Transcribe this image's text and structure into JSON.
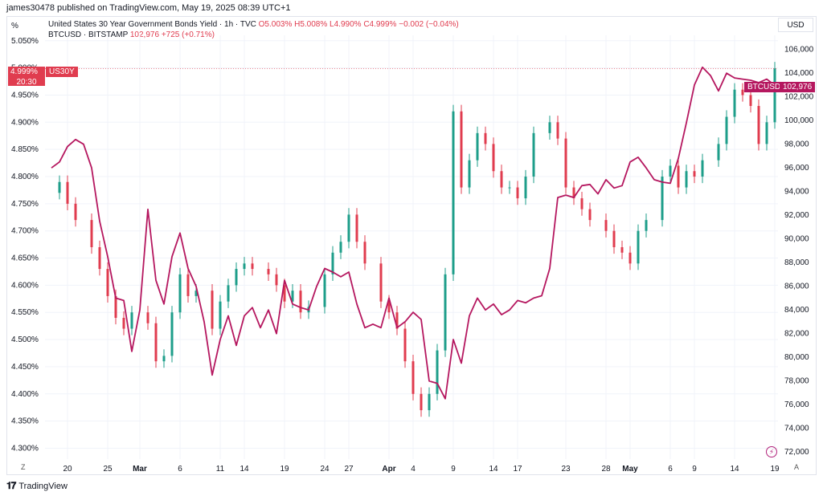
{
  "header": {
    "publish_line": "james30478 published on TradingView.com, May 19, 2025 08:39 UTC+1",
    "left_axis_unit": "%",
    "right_axis_unit": "USD"
  },
  "legend": {
    "series1_name": "United States 30 Year Government Bonds Yield · 1h · TVC",
    "series1_o": "O5.003%",
    "series1_h": "H5.008%",
    "series1_l": "L4.990%",
    "series1_c": "C4.999%",
    "series1_chg": "−0.002 (−0.04%)",
    "series2_name": "BTCUSD · BITSTAMP",
    "series2_price": "102,976",
    "series2_chg": "+725 (+0.71%)"
  },
  "badges": {
    "us30y_value": "4.999%",
    "us30y_tag": "US30Y",
    "us30y_time": "20:30",
    "btc_tag": "BTCUSD",
    "btc_value": "102,976"
  },
  "footer": {
    "brand": "TradingView",
    "z_button": "Z",
    "a_button": "A"
  },
  "colors": {
    "btc_line": "#b5175f",
    "candle_up": "#1e9e8a",
    "candle_down": "#e03c4f",
    "grid": "#f0f3fa"
  },
  "chart_data": {
    "type": "line",
    "title": "United States 30 Year Government Bonds Yield · 1h · TVC",
    "left_axis": {
      "unit": "%",
      "ylim": [
        4.28,
        5.06
      ],
      "ticks": [
        "5.050%",
        "5.000%",
        "4.950%",
        "4.900%",
        "4.850%",
        "4.800%",
        "4.750%",
        "4.700%",
        "4.650%",
        "4.600%",
        "4.550%",
        "4.500%",
        "4.450%",
        "4.400%",
        "4.350%",
        "4.300%"
      ],
      "tick_values": [
        5.05,
        5.0,
        4.95,
        4.9,
        4.85,
        4.8,
        4.75,
        4.7,
        4.65,
        4.6,
        4.55,
        4.5,
        4.45,
        4.4,
        4.35,
        4.3
      ]
    },
    "right_axis": {
      "unit": "USD",
      "ylim": [
        71400,
        107200
      ],
      "ticks": [
        "106,000",
        "104,000",
        "102,000",
        "100,000",
        "98,000",
        "96,000",
        "94,000",
        "92,000",
        "90,000",
        "88,000",
        "86,000",
        "84,000",
        "82,000",
        "80,000",
        "78,000",
        "76,000",
        "74,000",
        "72,000"
      ],
      "tick_values": [
        106000,
        104000,
        102000,
        100000,
        98000,
        96000,
        94000,
        92000,
        90000,
        88000,
        86000,
        84000,
        82000,
        80000,
        78000,
        76000,
        74000,
        72000
      ]
    },
    "x_axis": {
      "range": [
        "2025-02-18",
        "2025-05-19"
      ],
      "ticks": [
        {
          "label": "20",
          "date": "2025-02-20",
          "month": false
        },
        {
          "label": "25",
          "date": "2025-02-25",
          "month": false
        },
        {
          "label": "Mar",
          "date": "2025-03-01",
          "month": true
        },
        {
          "label": "6",
          "date": "2025-03-06",
          "month": false
        },
        {
          "label": "11",
          "date": "2025-03-11",
          "month": false
        },
        {
          "label": "14",
          "date": "2025-03-14",
          "month": false
        },
        {
          "label": "19",
          "date": "2025-03-19",
          "month": false
        },
        {
          "label": "24",
          "date": "2025-03-24",
          "month": false
        },
        {
          "label": "27",
          "date": "2025-03-27",
          "month": false
        },
        {
          "label": "Apr",
          "date": "2025-04-01",
          "month": true
        },
        {
          "label": "4",
          "date": "2025-04-04",
          "month": false
        },
        {
          "label": "9",
          "date": "2025-04-09",
          "month": false
        },
        {
          "label": "14",
          "date": "2025-04-14",
          "month": false
        },
        {
          "label": "17",
          "date": "2025-04-17",
          "month": false
        },
        {
          "label": "23",
          "date": "2025-04-23",
          "month": false
        },
        {
          "label": "28",
          "date": "2025-04-28",
          "month": false
        },
        {
          "label": "May",
          "date": "2025-05-01",
          "month": true
        },
        {
          "label": "6",
          "date": "2025-05-06",
          "month": false
        },
        {
          "label": "9",
          "date": "2025-05-09",
          "month": false
        },
        {
          "label": "14",
          "date": "2025-05-14",
          "month": false
        },
        {
          "label": "19",
          "date": "2025-05-19",
          "month": false
        }
      ]
    },
    "series": [
      {
        "name": "US30Y",
        "axis": "left",
        "style": "candles",
        "points": [
          [
            "2025-02-18",
            4.77
          ],
          [
            "2025-02-19",
            4.79
          ],
          [
            "2025-02-20",
            4.75
          ],
          [
            "2025-02-21",
            4.72
          ],
          [
            "2025-02-23",
            4.67
          ],
          [
            "2025-02-24",
            4.63
          ],
          [
            "2025-02-25",
            4.58
          ],
          [
            "2025-02-26",
            4.54
          ],
          [
            "2025-02-27",
            4.52
          ],
          [
            "2025-02-28",
            4.55
          ],
          [
            "2025-03-02",
            4.53
          ],
          [
            "2025-03-03",
            4.46
          ],
          [
            "2025-03-04",
            4.47
          ],
          [
            "2025-03-05",
            4.55
          ],
          [
            "2025-03-06",
            4.62
          ],
          [
            "2025-03-07",
            4.58
          ],
          [
            "2025-03-08",
            4.59
          ],
          [
            "2025-03-10",
            4.52
          ],
          [
            "2025-03-11",
            4.57
          ],
          [
            "2025-03-12",
            4.6
          ],
          [
            "2025-03-13",
            4.63
          ],
          [
            "2025-03-14",
            4.64
          ],
          [
            "2025-03-15",
            4.63
          ],
          [
            "2025-03-17",
            4.62
          ],
          [
            "2025-03-18",
            4.6
          ],
          [
            "2025-03-19",
            4.57
          ],
          [
            "2025-03-20",
            4.59
          ],
          [
            "2025-03-21",
            4.55
          ],
          [
            "2025-03-22",
            4.56
          ],
          [
            "2025-03-24",
            4.62
          ],
          [
            "2025-03-25",
            4.66
          ],
          [
            "2025-03-26",
            4.68
          ],
          [
            "2025-03-27",
            4.73
          ],
          [
            "2025-03-28",
            4.68
          ],
          [
            "2025-03-29",
            4.64
          ],
          [
            "2025-03-31",
            4.57
          ],
          [
            "2025-04-01",
            4.55
          ],
          [
            "2025-04-02",
            4.52
          ],
          [
            "2025-04-03",
            4.46
          ],
          [
            "2025-04-04",
            4.4
          ],
          [
            "2025-04-05",
            4.37
          ],
          [
            "2025-04-06",
            4.4
          ],
          [
            "2025-04-07",
            4.48
          ],
          [
            "2025-04-08",
            4.62
          ],
          [
            "2025-04-09",
            4.92
          ],
          [
            "2025-04-10",
            4.78
          ],
          [
            "2025-04-11",
            4.83
          ],
          [
            "2025-04-12",
            4.88
          ],
          [
            "2025-04-13",
            4.86
          ],
          [
            "2025-04-14",
            4.81
          ],
          [
            "2025-04-15",
            4.78
          ],
          [
            "2025-04-16",
            4.78
          ],
          [
            "2025-04-17",
            4.76
          ],
          [
            "2025-04-18",
            4.8
          ],
          [
            "2025-04-19",
            4.88
          ],
          [
            "2025-04-21",
            4.9
          ],
          [
            "2025-04-22",
            4.87
          ],
          [
            "2025-04-23",
            4.78
          ],
          [
            "2025-04-24",
            4.76
          ],
          [
            "2025-04-25",
            4.74
          ],
          [
            "2025-04-26",
            4.72
          ],
          [
            "2025-04-28",
            4.7
          ],
          [
            "2025-04-29",
            4.67
          ],
          [
            "2025-04-30",
            4.66
          ],
          [
            "2025-05-01",
            4.64
          ],
          [
            "2025-05-02",
            4.7
          ],
          [
            "2025-05-03",
            4.72
          ],
          [
            "2025-05-05",
            4.8
          ],
          [
            "2025-05-06",
            4.82
          ],
          [
            "2025-05-07",
            4.78
          ],
          [
            "2025-05-08",
            4.81
          ],
          [
            "2025-05-09",
            4.8
          ],
          [
            "2025-05-10",
            4.83
          ],
          [
            "2025-05-12",
            4.86
          ],
          [
            "2025-05-13",
            4.91
          ],
          [
            "2025-05-14",
            4.96
          ],
          [
            "2025-05-15",
            4.95
          ],
          [
            "2025-05-16",
            4.93
          ],
          [
            "2025-05-17",
            4.86
          ],
          [
            "2025-05-18",
            4.9
          ],
          [
            "2025-05-19",
            4.999
          ]
        ]
      },
      {
        "name": "BTCUSD",
        "axis": "right",
        "style": "line",
        "points": [
          [
            "2025-02-18",
            96000
          ],
          [
            "2025-02-19",
            96500
          ],
          [
            "2025-02-20",
            97800
          ],
          [
            "2025-02-21",
            98400
          ],
          [
            "2025-02-22",
            98000
          ],
          [
            "2025-02-23",
            96000
          ],
          [
            "2025-02-24",
            91500
          ],
          [
            "2025-02-25",
            88500
          ],
          [
            "2025-02-26",
            85000
          ],
          [
            "2025-02-27",
            84800
          ],
          [
            "2025-02-28",
            80500
          ],
          [
            "2025-03-01",
            84000
          ],
          [
            "2025-03-02",
            92500
          ],
          [
            "2025-03-03",
            86500
          ],
          [
            "2025-03-04",
            84500
          ],
          [
            "2025-03-05",
            88500
          ],
          [
            "2025-03-06",
            90500
          ],
          [
            "2025-03-07",
            87500
          ],
          [
            "2025-03-08",
            86000
          ],
          [
            "2025-03-09",
            83000
          ],
          [
            "2025-03-10",
            78500
          ],
          [
            "2025-03-11",
            81500
          ],
          [
            "2025-03-12",
            83500
          ],
          [
            "2025-03-13",
            81000
          ],
          [
            "2025-03-14",
            83500
          ],
          [
            "2025-03-15",
            84200
          ],
          [
            "2025-03-16",
            82500
          ],
          [
            "2025-03-17",
            84000
          ],
          [
            "2025-03-18",
            82000
          ],
          [
            "2025-03-19",
            86500
          ],
          [
            "2025-03-20",
            84500
          ],
          [
            "2025-03-21",
            84200
          ],
          [
            "2025-03-22",
            84000
          ],
          [
            "2025-03-23",
            86000
          ],
          [
            "2025-03-24",
            87500
          ],
          [
            "2025-03-25",
            87200
          ],
          [
            "2025-03-26",
            86800
          ],
          [
            "2025-03-27",
            87200
          ],
          [
            "2025-03-28",
            84500
          ],
          [
            "2025-03-29",
            82500
          ],
          [
            "2025-03-30",
            82800
          ],
          [
            "2025-03-31",
            82500
          ],
          [
            "2025-04-01",
            85000
          ],
          [
            "2025-04-02",
            82500
          ],
          [
            "2025-04-03",
            83000
          ],
          [
            "2025-04-04",
            83800
          ],
          [
            "2025-04-05",
            83200
          ],
          [
            "2025-04-06",
            78000
          ],
          [
            "2025-04-07",
            77800
          ],
          [
            "2025-04-08",
            76500
          ],
          [
            "2025-04-09",
            81500
          ],
          [
            "2025-04-10",
            79500
          ],
          [
            "2025-04-11",
            83500
          ],
          [
            "2025-04-12",
            85000
          ],
          [
            "2025-04-13",
            84000
          ],
          [
            "2025-04-14",
            84500
          ],
          [
            "2025-04-15",
            83600
          ],
          [
            "2025-04-16",
            84000
          ],
          [
            "2025-04-17",
            84800
          ],
          [
            "2025-04-18",
            84600
          ],
          [
            "2025-04-19",
            85000
          ],
          [
            "2025-04-20",
            85200
          ],
          [
            "2025-04-21",
            87500
          ],
          [
            "2025-04-22",
            93500
          ],
          [
            "2025-04-23",
            93700
          ],
          [
            "2025-04-24",
            93500
          ],
          [
            "2025-04-25",
            94500
          ],
          [
            "2025-04-26",
            94600
          ],
          [
            "2025-04-27",
            93800
          ],
          [
            "2025-04-28",
            95000
          ],
          [
            "2025-04-29",
            94300
          ],
          [
            "2025-04-30",
            94500
          ],
          [
            "2025-05-01",
            96500
          ],
          [
            "2025-05-02",
            96900
          ],
          [
            "2025-05-03",
            96000
          ],
          [
            "2025-05-04",
            95000
          ],
          [
            "2025-05-05",
            94800
          ],
          [
            "2025-05-06",
            94700
          ],
          [
            "2025-05-07",
            96800
          ],
          [
            "2025-05-08",
            99800
          ],
          [
            "2025-05-09",
            103000
          ],
          [
            "2025-05-10",
            104500
          ],
          [
            "2025-05-11",
            103800
          ],
          [
            "2025-05-12",
            102500
          ],
          [
            "2025-05-13",
            104000
          ],
          [
            "2025-05-14",
            103600
          ],
          [
            "2025-05-15",
            103500
          ],
          [
            "2025-05-16",
            103400
          ],
          [
            "2025-05-17",
            103200
          ],
          [
            "2025-05-18",
            103500
          ],
          [
            "2025-05-19",
            102976
          ]
        ]
      }
    ],
    "annotations": [
      "4.999% US30Y 20:30",
      "BTCUSD 102,976"
    ],
    "grid": true,
    "legend_position": "top-left"
  }
}
